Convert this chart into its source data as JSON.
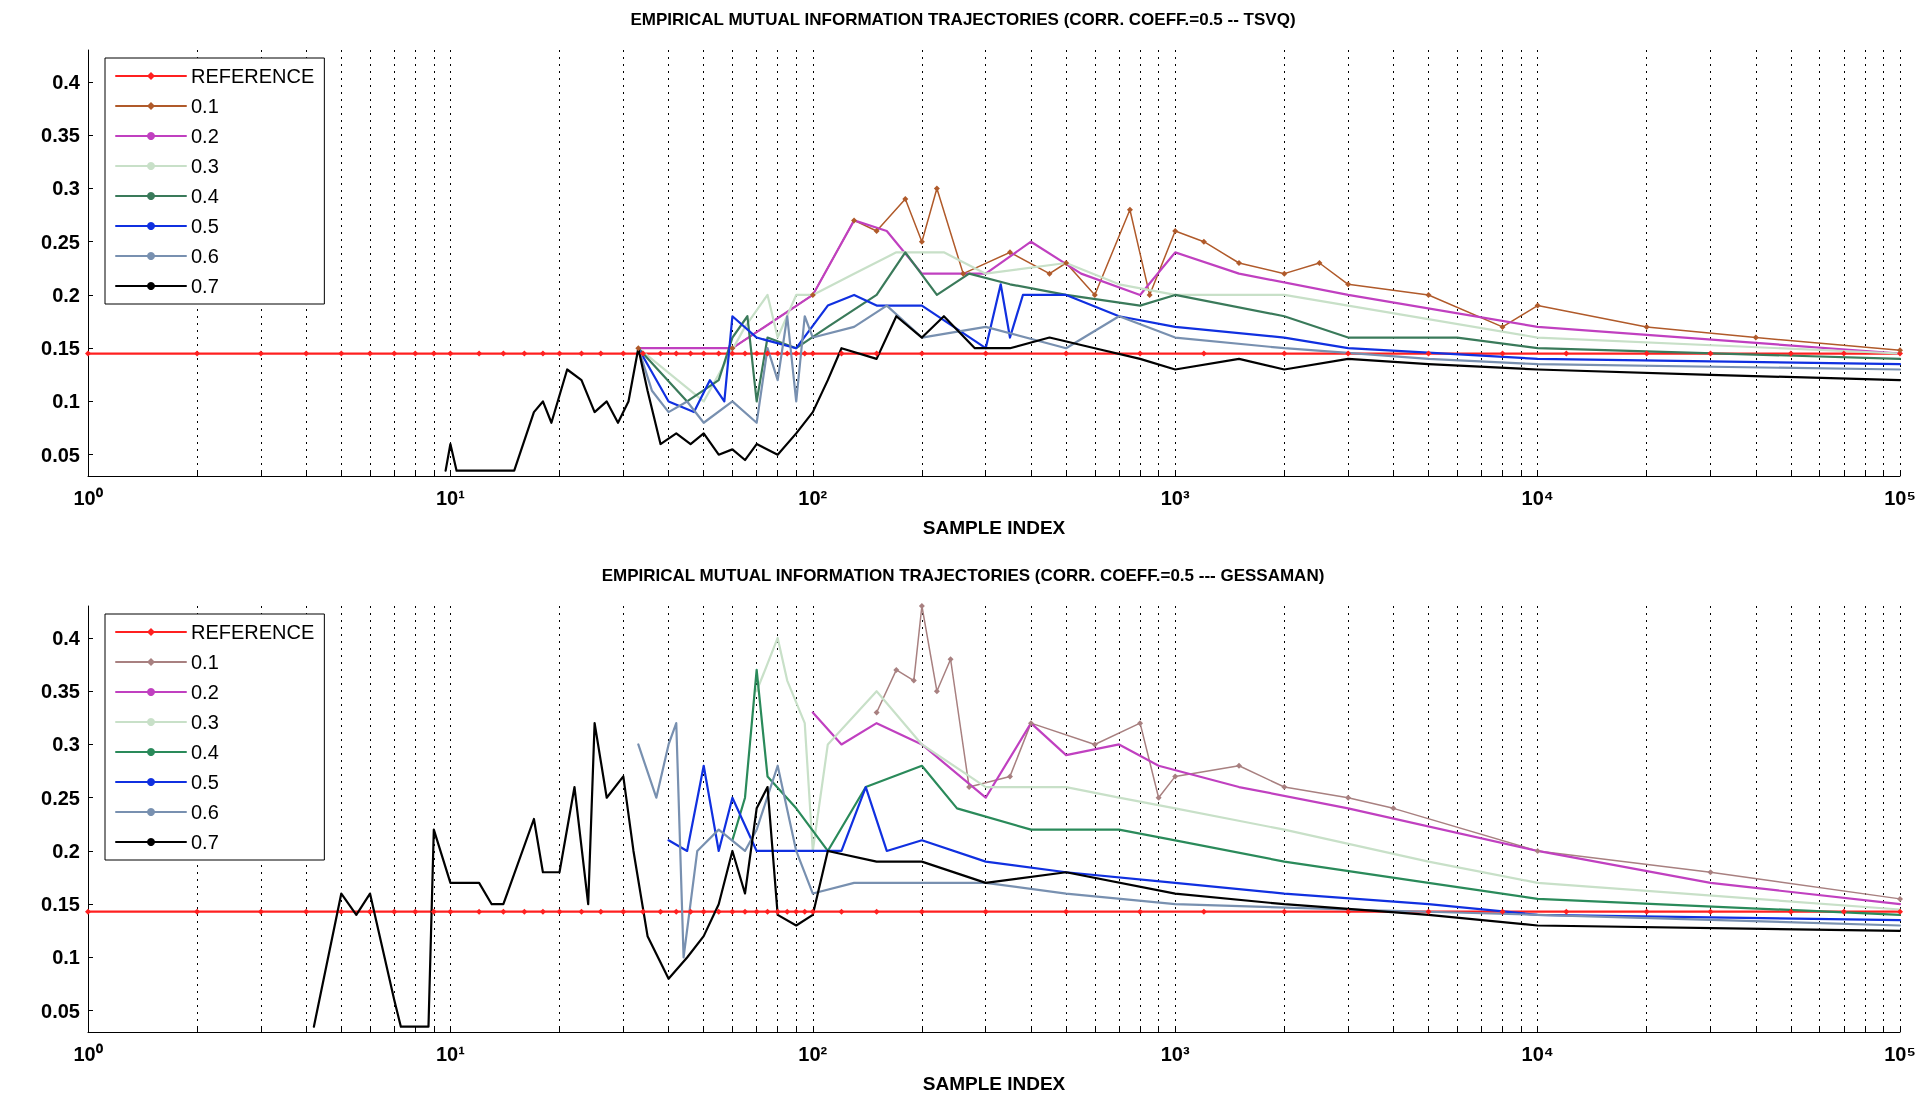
{
  "chart_data": [
    {
      "type": "line",
      "title": "EMPIRICAL MUTUAL INFORMATION TRAJECTORIES (CORR. COEFF.=0.5 -- TSVQ)",
      "xlabel": "SAMPLE INDEX",
      "log": "x",
      "grid": "x",
      "legend": "top left",
      "line_style": "solid",
      "xlim": [
        1,
        100000
      ],
      "ylim": [
        0.03,
        0.43
      ],
      "xticks": [
        {
          "value": 1,
          "label": "10⁰"
        },
        {
          "value": 2,
          "label": null
        },
        {
          "value": 3,
          "label": null
        },
        {
          "value": 4,
          "label": null
        },
        {
          "value": 5,
          "label": null
        },
        {
          "value": 6,
          "label": null
        },
        {
          "value": 7,
          "label": null
        },
        {
          "value": 8,
          "label": null
        },
        {
          "value": 9,
          "label": null
        },
        {
          "value": 10,
          "label": "10¹"
        },
        {
          "value": 20,
          "label": null
        },
        {
          "value": 30,
          "label": null
        },
        {
          "value": 40,
          "label": null
        },
        {
          "value": 50,
          "label": null
        },
        {
          "value": 60,
          "label": null
        },
        {
          "value": 70,
          "label": null
        },
        {
          "value": 80,
          "label": null
        },
        {
          "value": 90,
          "label": null
        },
        {
          "value": 100,
          "label": "10²"
        },
        {
          "value": 200,
          "label": null
        },
        {
          "value": 300,
          "label": null
        },
        {
          "value": 400,
          "label": null
        },
        {
          "value": 500,
          "label": null
        },
        {
          "value": 600,
          "label": null
        },
        {
          "value": 700,
          "label": null
        },
        {
          "value": 800,
          "label": null
        },
        {
          "value": 900,
          "label": null
        },
        {
          "value": 1000,
          "label": "10³"
        },
        {
          "value": 2000,
          "label": null
        },
        {
          "value": 3000,
          "label": null
        },
        {
          "value": 4000,
          "label": null
        },
        {
          "value": 5000,
          "label": null
        },
        {
          "value": 6000,
          "label": null
        },
        {
          "value": 7000,
          "label": null
        },
        {
          "value": 8000,
          "label": null
        },
        {
          "value": 9000,
          "label": null
        },
        {
          "value": 10000,
          "label": "10⁴"
        },
        {
          "value": 20000,
          "label": null
        },
        {
          "value": 30000,
          "label": null
        },
        {
          "value": 40000,
          "label": null
        },
        {
          "value": 50000,
          "label": null
        },
        {
          "value": 60000,
          "label": null
        },
        {
          "value": 70000,
          "label": null
        },
        {
          "value": 80000,
          "label": null
        },
        {
          "value": 90000,
          "label": null
        },
        {
          "value": 100000,
          "label": "10⁵"
        }
      ],
      "yticks": [
        0.05,
        0.1,
        0.15,
        0.2,
        0.25,
        0.3,
        0.35,
        0.4
      ],
      "series": [
        {
          "name": "REFERENCE",
          "color": "#ff2020",
          "marker": "diamond",
          "x": [
            1,
            2,
            3,
            4,
            5,
            6,
            7,
            8,
            9,
            10,
            12,
            14,
            16,
            18,
            20,
            23,
            26,
            30,
            34,
            38,
            42,
            46,
            50,
            55,
            60,
            65,
            70,
            75,
            80,
            85,
            90,
            95,
            100,
            120,
            150,
            200,
            300,
            500,
            800,
            1200,
            2000,
            3000,
            5000,
            8000,
            12000,
            20000,
            30000,
            50000,
            70000,
            100000
          ],
          "values": [
            0.145,
            0.145,
            0.145,
            0.145,
            0.145,
            0.145,
            0.145,
            0.145,
            0.145,
            0.145,
            0.145,
            0.145,
            0.145,
            0.145,
            0.145,
            0.145,
            0.145,
            0.145,
            0.145,
            0.145,
            0.145,
            0.145,
            0.145,
            0.145,
            0.145,
            0.145,
            0.145,
            0.145,
            0.145,
            0.145,
            0.145,
            0.145,
            0.145,
            0.145,
            0.145,
            0.145,
            0.145,
            0.145,
            0.145,
            0.145,
            0.145,
            0.145,
            0.145,
            0.145,
            0.145,
            0.145,
            0.145,
            0.145,
            0.145,
            0.145
          ]
        },
        {
          "name": "0.1",
          "color": "#b05a2a",
          "marker": "diamond",
          "x": [
            33,
            60,
            100,
            130,
            150,
            180,
            200,
            220,
            260,
            350,
            450,
            500,
            600,
            750,
            850,
            1000,
            1200,
            1500,
            2000,
            2500,
            3000,
            5000,
            8000,
            10000,
            20000,
            40000,
            100000
          ],
          "values": [
            0.15,
            0.15,
            0.2,
            0.27,
            0.26,
            0.29,
            0.25,
            0.3,
            0.22,
            0.24,
            0.22,
            0.23,
            0.2,
            0.28,
            0.2,
            0.26,
            0.25,
            0.23,
            0.22,
            0.23,
            0.21,
            0.2,
            0.17,
            0.19,
            0.17,
            0.16,
            0.148
          ]
        },
        {
          "name": "0.2",
          "color": "#c040c0",
          "marker": "none",
          "x": [
            33,
            60,
            100,
            130,
            160,
            200,
            300,
            400,
            550,
            800,
            1000,
            1500,
            3000,
            10000,
            100000
          ],
          "values": [
            0.15,
            0.15,
            0.2,
            0.27,
            0.26,
            0.22,
            0.22,
            0.25,
            0.22,
            0.2,
            0.24,
            0.22,
            0.2,
            0.17,
            0.145
          ]
        },
        {
          "name": "0.3",
          "color": "#c8e0c8",
          "marker": "none",
          "x": [
            33,
            50,
            65,
            75,
            80,
            90,
            100,
            130,
            170,
            230,
            300,
            500,
            700,
            1000,
            2000,
            3000,
            10000,
            100000
          ],
          "values": [
            0.15,
            0.1,
            0.17,
            0.2,
            0.16,
            0.2,
            0.2,
            0.22,
            0.24,
            0.24,
            0.22,
            0.23,
            0.21,
            0.2,
            0.2,
            0.19,
            0.16,
            0.145
          ]
        },
        {
          "name": "0.4",
          "color": "#3a7a5a",
          "marker": "none",
          "x": [
            33,
            45,
            55,
            60,
            66,
            70,
            75,
            90,
            110,
            150,
            180,
            220,
            270,
            350,
            500,
            800,
            1000,
            2000,
            3000,
            6000,
            10000,
            100000
          ],
          "values": [
            0.15,
            0.1,
            0.12,
            0.16,
            0.18,
            0.1,
            0.16,
            0.15,
            0.17,
            0.2,
            0.24,
            0.2,
            0.22,
            0.21,
            0.2,
            0.19,
            0.2,
            0.18,
            0.16,
            0.16,
            0.15,
            0.14
          ]
        },
        {
          "name": "0.5",
          "color": "#1030e0",
          "marker": "none",
          "x": [
            33,
            40,
            47,
            52,
            57,
            60,
            70,
            90,
            110,
            130,
            150,
            200,
            300,
            330,
            350,
            380,
            500,
            700,
            1000,
            2000,
            3000,
            10000,
            100000
          ],
          "values": [
            0.15,
            0.1,
            0.09,
            0.12,
            0.1,
            0.18,
            0.16,
            0.15,
            0.19,
            0.2,
            0.19,
            0.19,
            0.15,
            0.21,
            0.16,
            0.2,
            0.2,
            0.18,
            0.17,
            0.16,
            0.15,
            0.14,
            0.135
          ]
        },
        {
          "name": "0.6",
          "color": "#7890b0",
          "marker": "none",
          "x": [
            33,
            36,
            40,
            45,
            50,
            60,
            70,
            75,
            80,
            85,
            90,
            95,
            100,
            130,
            160,
            200,
            300,
            500,
            700,
            1000,
            2000,
            5000,
            10000,
            100000
          ],
          "values": [
            0.15,
            0.11,
            0.09,
            0.1,
            0.08,
            0.1,
            0.08,
            0.15,
            0.12,
            0.18,
            0.1,
            0.18,
            0.16,
            0.17,
            0.19,
            0.16,
            0.17,
            0.15,
            0.18,
            0.16,
            0.15,
            0.14,
            0.135,
            0.13
          ]
        },
        {
          "name": "0.7",
          "color": "#000000",
          "marker": "none",
          "x": [
            9.7,
            10,
            10.4,
            15,
            17,
            18,
            19,
            21,
            23,
            25,
            27,
            29,
            31,
            33,
            35,
            38,
            42,
            46,
            50,
            55,
            60,
            65,
            70,
            80,
            90,
            100,
            110,
            120,
            150,
            170,
            200,
            230,
            280,
            350,
            450,
            600,
            800,
            1000,
            1500,
            2000,
            3000,
            5000,
            10000,
            30000,
            100000
          ],
          "values": [
            0.035,
            0.06,
            0.035,
            0.035,
            0.09,
            0.1,
            0.08,
            0.13,
            0.12,
            0.09,
            0.1,
            0.08,
            0.1,
            0.15,
            0.11,
            0.06,
            0.07,
            0.06,
            0.07,
            0.05,
            0.055,
            0.045,
            0.06,
            0.05,
            0.07,
            0.09,
            0.12,
            0.15,
            0.14,
            0.18,
            0.16,
            0.18,
            0.15,
            0.15,
            0.16,
            0.15,
            0.14,
            0.13,
            0.14,
            0.13,
            0.14,
            0.135,
            0.13,
            0.125,
            0.12
          ]
        }
      ]
    },
    {
      "type": "line",
      "title": "EMPIRICAL MUTUAL INFORMATION TRAJECTORIES (CORR. COEFF.=0.5 --- GESSAMAN)",
      "xlabel": "SAMPLE INDEX",
      "log": "x",
      "grid": "x",
      "legend": "top left",
      "line_style": "solid",
      "xlim": [
        1,
        100000
      ],
      "ylim": [
        0.03,
        0.43
      ],
      "xticks": [
        {
          "value": 1,
          "label": "10⁰"
        },
        {
          "value": 2,
          "label": null
        },
        {
          "value": 3,
          "label": null
        },
        {
          "value": 4,
          "label": null
        },
        {
          "value": 5,
          "label": null
        },
        {
          "value": 6,
          "label": null
        },
        {
          "value": 7,
          "label": null
        },
        {
          "value": 8,
          "label": null
        },
        {
          "value": 9,
          "label": null
        },
        {
          "value": 10,
          "label": "10¹"
        },
        {
          "value": 20,
          "label": null
        },
        {
          "value": 30,
          "label": null
        },
        {
          "value": 40,
          "label": null
        },
        {
          "value": 50,
          "label": null
        },
        {
          "value": 60,
          "label": null
        },
        {
          "value": 70,
          "label": null
        },
        {
          "value": 80,
          "label": null
        },
        {
          "value": 90,
          "label": null
        },
        {
          "value": 100,
          "label": "10²"
        },
        {
          "value": 200,
          "label": null
        },
        {
          "value": 300,
          "label": null
        },
        {
          "value": 400,
          "label": null
        },
        {
          "value": 500,
          "label": null
        },
        {
          "value": 600,
          "label": null
        },
        {
          "value": 700,
          "label": null
        },
        {
          "value": 800,
          "label": null
        },
        {
          "value": 900,
          "label": null
        },
        {
          "value": 1000,
          "label": "10³"
        },
        {
          "value": 2000,
          "label": null
        },
        {
          "value": 3000,
          "label": null
        },
        {
          "value": 4000,
          "label": null
        },
        {
          "value": 5000,
          "label": null
        },
        {
          "value": 6000,
          "label": null
        },
        {
          "value": 7000,
          "label": null
        },
        {
          "value": 8000,
          "label": null
        },
        {
          "value": 9000,
          "label": null
        },
        {
          "value": 10000,
          "label": "10⁴"
        },
        {
          "value": 20000,
          "label": null
        },
        {
          "value": 30000,
          "label": null
        },
        {
          "value": 40000,
          "label": null
        },
        {
          "value": 50000,
          "label": null
        },
        {
          "value": 60000,
          "label": null
        },
        {
          "value": 70000,
          "label": null
        },
        {
          "value": 80000,
          "label": null
        },
        {
          "value": 90000,
          "label": null
        },
        {
          "value": 100000,
          "label": "10⁵"
        }
      ],
      "yticks": [
        0.05,
        0.1,
        0.15,
        0.2,
        0.25,
        0.3,
        0.35,
        0.4
      ],
      "series": [
        {
          "name": "REFERENCE",
          "color": "#ff2020",
          "marker": "diamond",
          "x": [
            1,
            2,
            3,
            4,
            5,
            6,
            7,
            8,
            9,
            10,
            12,
            14,
            16,
            18,
            20,
            23,
            26,
            30,
            34,
            38,
            42,
            46,
            50,
            55,
            60,
            65,
            70,
            75,
            80,
            85,
            90,
            95,
            100,
            120,
            150,
            200,
            300,
            500,
            800,
            1200,
            2000,
            3000,
            5000,
            8000,
            12000,
            20000,
            30000,
            50000,
            70000,
            100000
          ],
          "values": [
            0.143,
            0.143,
            0.143,
            0.143,
            0.143,
            0.143,
            0.143,
            0.143,
            0.143,
            0.143,
            0.143,
            0.143,
            0.143,
            0.143,
            0.143,
            0.143,
            0.143,
            0.143,
            0.143,
            0.143,
            0.143,
            0.143,
            0.143,
            0.143,
            0.143,
            0.143,
            0.143,
            0.143,
            0.143,
            0.143,
            0.143,
            0.143,
            0.143,
            0.143,
            0.143,
            0.143,
            0.143,
            0.143,
            0.143,
            0.143,
            0.143,
            0.143,
            0.143,
            0.143,
            0.143,
            0.143,
            0.143,
            0.143,
            0.143,
            0.143
          ]
        },
        {
          "name": "0.1",
          "color": "#a88080",
          "marker": "diamond",
          "x": [
            150,
            170,
            190,
            200,
            220,
            240,
            270,
            350,
            400,
            600,
            800,
            900,
            1000,
            1500,
            2000,
            3000,
            4000,
            10000,
            30000,
            100000
          ],
          "values": [
            0.33,
            0.37,
            0.36,
            0.43,
            0.35,
            0.38,
            0.26,
            0.27,
            0.32,
            0.3,
            0.32,
            0.25,
            0.27,
            0.28,
            0.26,
            0.25,
            0.24,
            0.2,
            0.18,
            0.155
          ]
        },
        {
          "name": "0.2",
          "color": "#c040c0",
          "marker": "none",
          "x": [
            100,
            120,
            150,
            200,
            300,
            400,
            500,
            700,
            900,
            1500,
            3000,
            10000,
            30000,
            100000
          ],
          "values": [
            0.33,
            0.3,
            0.32,
            0.3,
            0.25,
            0.32,
            0.29,
            0.3,
            0.28,
            0.26,
            0.24,
            0.2,
            0.17,
            0.15
          ]
        },
        {
          "name": "0.3",
          "color": "#c8e0c8",
          "marker": "none",
          "x": [
            70,
            80,
            85,
            95,
            100,
            110,
            150,
            200,
            300,
            500,
            700,
            1000,
            2000,
            5000,
            10000,
            100000
          ],
          "values": [
            0.35,
            0.4,
            0.36,
            0.32,
            0.2,
            0.3,
            0.35,
            0.3,
            0.26,
            0.26,
            0.25,
            0.24,
            0.22,
            0.19,
            0.17,
            0.145
          ]
        },
        {
          "name": "0.4",
          "color": "#2a8a5a",
          "marker": "none",
          "x": [
            60,
            65,
            70,
            75,
            90,
            110,
            140,
            200,
            250,
            400,
            700,
            1000,
            2000,
            5000,
            10000,
            100000
          ],
          "values": [
            0.21,
            0.25,
            0.37,
            0.27,
            0.24,
            0.2,
            0.26,
            0.28,
            0.24,
            0.22,
            0.22,
            0.21,
            0.19,
            0.17,
            0.155,
            0.14
          ]
        },
        {
          "name": "0.5",
          "color": "#1030e0",
          "marker": "none",
          "x": [
            40,
            45,
            50,
            55,
            60,
            70,
            90,
            120,
            140,
            160,
            200,
            300,
            500,
            1000,
            2000,
            5000,
            10000,
            100000
          ],
          "values": [
            0.21,
            0.2,
            0.28,
            0.2,
            0.25,
            0.2,
            0.2,
            0.2,
            0.26,
            0.2,
            0.21,
            0.19,
            0.18,
            0.17,
            0.16,
            0.15,
            0.14,
            0.135
          ]
        },
        {
          "name": "0.6",
          "color": "#7890b0",
          "marker": "none",
          "x": [
            33,
            37,
            40,
            42,
            44,
            48,
            55,
            65,
            70,
            80,
            90,
            100,
            130,
            200,
            300,
            500,
            1000,
            3000,
            10000,
            100000
          ],
          "values": [
            0.3,
            0.25,
            0.3,
            0.32,
            0.1,
            0.2,
            0.22,
            0.2,
            0.22,
            0.28,
            0.2,
            0.16,
            0.17,
            0.17,
            0.17,
            0.16,
            0.15,
            0.145,
            0.14,
            0.13
          ]
        },
        {
          "name": "0.7",
          "color": "#000000",
          "marker": "none",
          "x": [
            4.2,
            5,
            5.5,
            6,
            7,
            7.3,
            8.7,
            9,
            10,
            12,
            13,
            14,
            17,
            18,
            20,
            22,
            24,
            25,
            27,
            30,
            32,
            35,
            40,
            45,
            50,
            55,
            60,
            65,
            70,
            75,
            80,
            90,
            100,
            110,
            150,
            200,
            300,
            500,
            1000,
            2000,
            5000,
            10000,
            100000
          ],
          "values": [
            0.035,
            0.16,
            0.14,
            0.16,
            0.06,
            0.035,
            0.035,
            0.22,
            0.17,
            0.17,
            0.15,
            0.15,
            0.23,
            0.18,
            0.18,
            0.26,
            0.15,
            0.32,
            0.25,
            0.27,
            0.2,
            0.12,
            0.08,
            0.1,
            0.12,
            0.15,
            0.2,
            0.16,
            0.24,
            0.26,
            0.14,
            0.13,
            0.14,
            0.2,
            0.19,
            0.19,
            0.17,
            0.18,
            0.16,
            0.15,
            0.14,
            0.13,
            0.125
          ]
        }
      ]
    }
  ]
}
